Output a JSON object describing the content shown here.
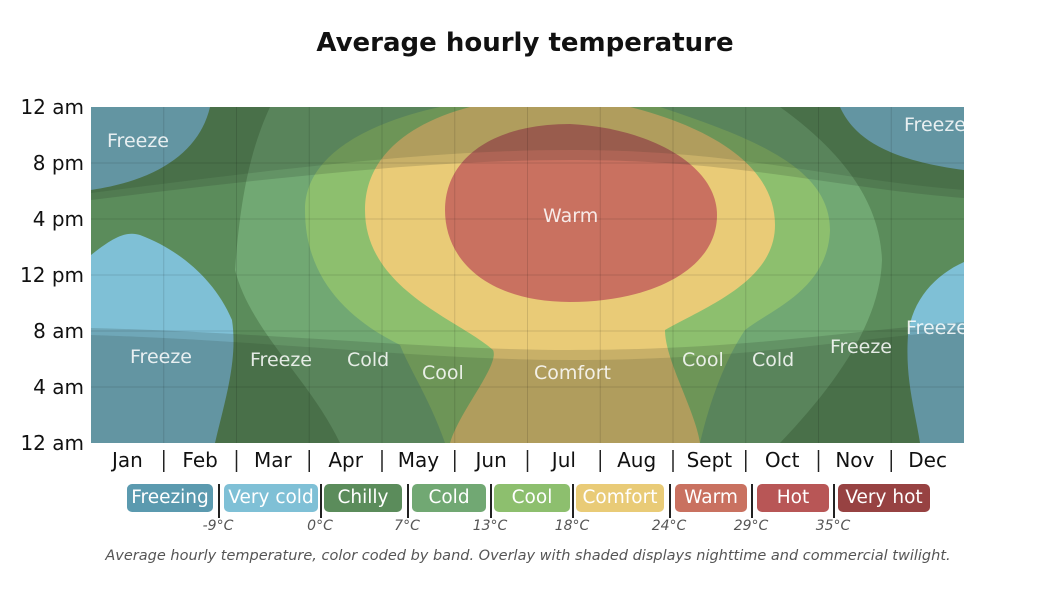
{
  "title": "Average hourly temperature",
  "caption": "Average hourly temperature, color coded by band. Overlay with shaded displays nighttime and commercial twilight.",
  "chart_data": {
    "type": "heatmap",
    "title": "Average hourly temperature",
    "y_ticks": [
      "12 am",
      "8 pm",
      "4 pm",
      "12 pm",
      "8 am",
      "4 am",
      "12 am"
    ],
    "x_categories": [
      "Jan",
      "Feb",
      "Mar",
      "Apr",
      "May",
      "Jun",
      "Jul",
      "Aug",
      "Sept",
      "Oct",
      "Nov",
      "Dec"
    ],
    "bands": [
      {
        "name": "Freezing",
        "color": "#5b9aaf"
      },
      {
        "name": "Very cold",
        "color": "#7fc0d6"
      },
      {
        "name": "Chilly",
        "color": "#5b8c5b"
      },
      {
        "name": "Cold",
        "color": "#71a873"
      },
      {
        "name": "Cool",
        "color": "#8dbf6e"
      },
      {
        "name": "Comfort",
        "color": "#e9cb77"
      },
      {
        "name": "Warm",
        "color": "#c97160"
      },
      {
        "name": "Hot",
        "color": "#b85656"
      },
      {
        "name": "Very hot",
        "color": "#974242"
      }
    ],
    "thresholds": [
      "-9°C",
      "0°C",
      "7°C",
      "13°C",
      "18°C",
      "24°C",
      "29°C",
      "35°C"
    ],
    "zone_labels": [
      "Freeze",
      "Freeze",
      "Freeze",
      "Freeze",
      "Freeze",
      "Freeze",
      "Cold",
      "Cool",
      "Warm",
      "Comfort",
      "Cool",
      "Cold"
    ]
  }
}
